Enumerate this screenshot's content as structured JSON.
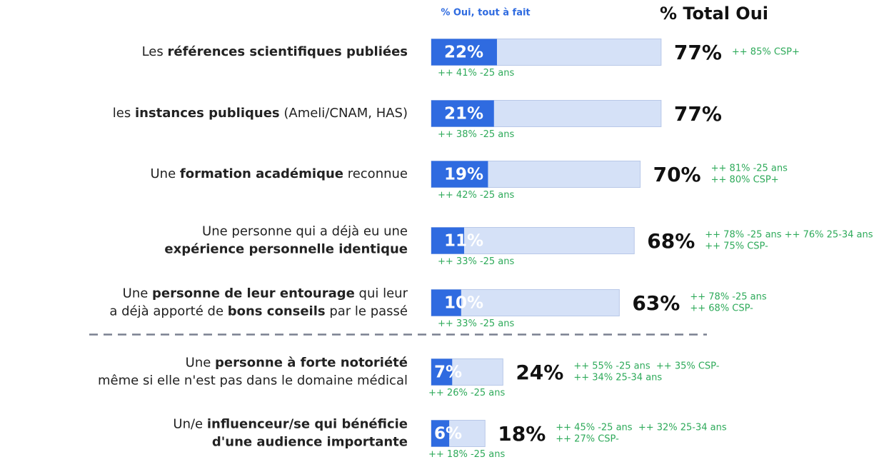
{
  "chart_data": {
    "type": "bar",
    "overlay": true,
    "categories": [
      [
        [
          {
            "text": "Les ",
            "bold": false
          },
          {
            "text": "références scientifiques publiées",
            "bold": true
          }
        ]
      ],
      [
        [
          {
            "text": "les ",
            "bold": false
          },
          {
            "text": "instances publiques",
            "bold": true
          },
          {
            "text": " (Ameli/CNAM, HAS)",
            "bold": false
          }
        ]
      ],
      [
        [
          {
            "text": "Une ",
            "bold": false
          },
          {
            "text": "formation académique",
            "bold": true
          },
          {
            "text": " reconnue",
            "bold": false
          }
        ]
      ],
      [
        [
          {
            "text": "Une personne qui a déjà eu une",
            "bold": false
          }
        ],
        [
          {
            "text": "expérience personnelle identique",
            "bold": true
          }
        ]
      ],
      [
        [
          {
            "text": "Une ",
            "bold": false
          },
          {
            "text": "personne de leur entourage",
            "bold": true
          },
          {
            "text": " qui leur",
            "bold": false
          }
        ],
        [
          {
            "text": "a déjà apporté de ",
            "bold": false
          },
          {
            "text": "bons conseils",
            "bold": true
          },
          {
            "text": " par le passé",
            "bold": false
          }
        ]
      ],
      [
        [
          {
            "text": "Une ",
            "bold": false
          },
          {
            "text": "personne à forte notoriété",
            "bold": true
          }
        ],
        [
          {
            "text": "même si elle n'est pas dans le domaine médical",
            "bold": false
          }
        ]
      ],
      [
        [
          {
            "text": "Un/e ",
            "bold": false
          },
          {
            "text": "influenceur/se qui bénéficie",
            "bold": true
          }
        ],
        [
          {
            "text": "d'une audience importante",
            "bold": true
          }
        ]
      ]
    ],
    "series": [
      {
        "name": "% Oui, tout à fait",
        "color": "#2f6be0",
        "values": [
          22,
          21,
          19,
          11,
          10,
          7,
          6
        ],
        "value_labels": [
          "22%",
          "21%",
          "19%",
          "11%",
          "10%",
          "7%",
          "6%"
        ]
      },
      {
        "name": "% Total Oui",
        "color": "#d5e1f7",
        "values": [
          77,
          77,
          70,
          68,
          63,
          24,
          18
        ],
        "value_labels": [
          "77%",
          "77%",
          "70%",
          "68%",
          "63%",
          "24%",
          "18%"
        ]
      }
    ],
    "notes_below": [
      "++ 41% -25 ans",
      "++ 38% -25 ans",
      "++ 42% -25 ans",
      "++ 33% -25 ans",
      "++ 33% -25 ans",
      "++ 26% -25 ans",
      "++ 18% -25 ans"
    ],
    "notes_right": [
      [
        "++ 85% CSP+"
      ],
      [],
      [
        "++ 81% -25 ans",
        "++ 80% CSP+"
      ],
      [
        "++ 78% -25 ans ++ 76% 25-34 ans",
        "++ 75% CSP-"
      ],
      [
        "++ 78% -25 ans",
        "++ 68% CSP-"
      ],
      [
        "++ 55% -25 ans  ++ 35% CSP-",
        "++ 34% 25-34 ans"
      ],
      [
        "++ 45% -25 ans  ++ 32% 25-34 ans",
        "++ 27% CSP-"
      ]
    ],
    "note_color": "#2eaa5a",
    "separator_after": 4
  }
}
